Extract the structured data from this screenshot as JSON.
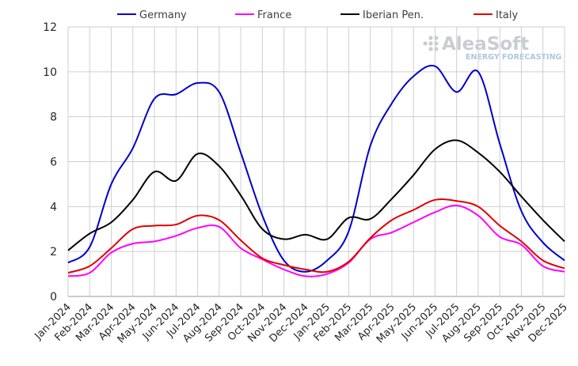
{
  "logo": {
    "name": "AleaSoft",
    "tagline": "ENERGY FORECASTING"
  },
  "chart_data": {
    "type": "line",
    "title": "",
    "xlabel": "",
    "ylabel": "",
    "ylim": [
      0,
      12
    ],
    "yticks": [
      0,
      2,
      4,
      6,
      8,
      10,
      12
    ],
    "grid": true,
    "legend": "top",
    "categories": [
      "Jan-2024",
      "Feb-2024",
      "Mar-2024",
      "Apr-2024",
      "May-2024",
      "Jun-2024",
      "Jul-2024",
      "Aug-2024",
      "Sep-2024",
      "Oct-2024",
      "Nov-2024",
      "Dec-2024",
      "Jan-2025",
      "Feb-2025",
      "Mar-2025",
      "Apr-2025",
      "May-2025",
      "Jun-2025",
      "Jul-2025",
      "Aug-2025",
      "Sep-2025",
      "Oct-2025",
      "Nov-2025",
      "Dec-2025"
    ],
    "series": [
      {
        "name": "Germany",
        "color": "#0000c8",
        "values": [
          1.5,
          2.2,
          5.0,
          6.6,
          8.8,
          9.0,
          9.5,
          9.1,
          6.4,
          3.6,
          1.6,
          1.1,
          1.6,
          2.9,
          6.7,
          8.6,
          9.8,
          10.25,
          9.1,
          10.0,
          6.8,
          3.8,
          2.4,
          1.6
        ]
      },
      {
        "name": "France",
        "color": "#ff00ff",
        "values": [
          0.9,
          1.05,
          1.95,
          2.35,
          2.45,
          2.7,
          3.05,
          3.1,
          2.15,
          1.65,
          1.2,
          0.9,
          1.0,
          1.5,
          2.55,
          2.85,
          3.3,
          3.75,
          4.05,
          3.6,
          2.65,
          2.3,
          1.35,
          1.1
        ]
      },
      {
        "name": "Iberian Pen.",
        "color": "#000000",
        "values": [
          2.05,
          2.8,
          3.3,
          4.3,
          5.55,
          5.15,
          6.35,
          5.8,
          4.5,
          3.0,
          2.55,
          2.75,
          2.55,
          3.5,
          3.45,
          4.35,
          5.4,
          6.55,
          6.95,
          6.4,
          5.55,
          4.45,
          3.4,
          2.45
        ]
      },
      {
        "name": "Italy",
        "color": "#e00000",
        "values": [
          1.05,
          1.35,
          2.15,
          3.0,
          3.15,
          3.2,
          3.6,
          3.4,
          2.5,
          1.7,
          1.4,
          1.2,
          1.1,
          1.55,
          2.6,
          3.4,
          3.85,
          4.3,
          4.25,
          4.0,
          3.15,
          2.45,
          1.6,
          1.25
        ]
      }
    ]
  }
}
